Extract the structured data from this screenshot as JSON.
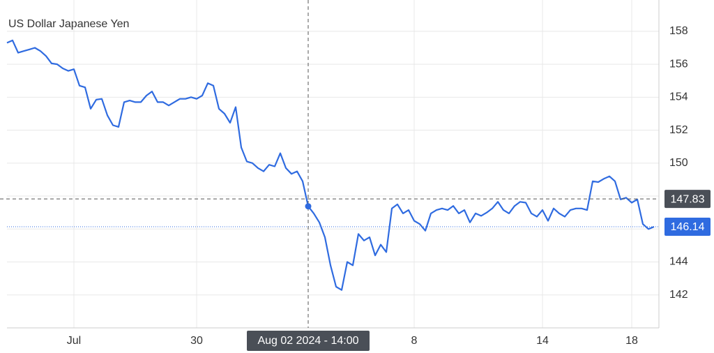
{
  "chart_data": {
    "type": "line",
    "title": "US Dollar Japanese Yen",
    "categories": [
      null,
      null,
      null,
      null,
      null,
      null,
      null,
      null,
      null,
      null,
      null,
      null,
      "Jul",
      null,
      null,
      null,
      null,
      null,
      null,
      null,
      null,
      null,
      null,
      null,
      null,
      null,
      null,
      null,
      null,
      null,
      null,
      null,
      null,
      null,
      "30",
      null,
      null,
      null,
      null,
      null,
      null,
      null,
      null,
      null,
      null,
      null,
      null,
      null,
      null,
      null,
      null,
      null,
      null,
      null,
      null,
      null,
      null,
      null,
      null,
      null,
      null,
      null,
      null,
      null,
      null,
      null,
      null,
      null,
      null,
      null,
      null,
      null,
      null,
      "8",
      null,
      null,
      null,
      null,
      null,
      null,
      null,
      null,
      null,
      null,
      null,
      null,
      null,
      null,
      null,
      null,
      null,
      null,
      null,
      null,
      null,
      null,
      "14",
      null,
      null,
      null,
      null,
      null,
      null,
      null,
      null,
      null,
      null,
      null,
      null,
      null,
      null,
      null,
      "18",
      null,
      null,
      null,
      null
    ],
    "series": [
      {
        "name": "US Dollar Japanese Yen",
        "color": "#2f6be0",
        "values": [
          157.3,
          157.45,
          156.7,
          156.8,
          156.9,
          157.0,
          156.8,
          156.5,
          156.05,
          156.0,
          155.75,
          155.6,
          155.7,
          154.7,
          154.6,
          153.3,
          153.85,
          153.9,
          152.9,
          152.3,
          152.2,
          153.7,
          153.8,
          153.7,
          153.7,
          154.1,
          154.35,
          153.7,
          153.7,
          153.5,
          153.7,
          153.9,
          153.9,
          154.0,
          153.9,
          154.1,
          154.85,
          154.7,
          153.3,
          153.0,
          152.45,
          153.4,
          150.95,
          150.1,
          150.0,
          149.7,
          149.5,
          149.9,
          149.8,
          150.6,
          149.7,
          149.35,
          149.5,
          148.9,
          147.38,
          146.95,
          146.4,
          145.5,
          143.8,
          142.5,
          142.3,
          144.0,
          143.8,
          145.7,
          145.3,
          145.5,
          144.4,
          145.05,
          144.6,
          147.25,
          147.5,
          146.95,
          147.15,
          146.5,
          146.3,
          145.9,
          146.95,
          147.15,
          147.25,
          147.15,
          147.4,
          146.95,
          147.15,
          146.4,
          146.95,
          146.8,
          147.0,
          147.25,
          147.65,
          147.15,
          146.95,
          147.4,
          147.65,
          147.6,
          146.95,
          146.75,
          147.15,
          146.5,
          147.25,
          146.95,
          146.75,
          147.15,
          147.25,
          147.25,
          147.15,
          148.9,
          148.85,
          149.05,
          149.2,
          148.9,
          147.8,
          147.9,
          147.6,
          147.8,
          146.3,
          146.0,
          146.14
        ]
      }
    ],
    "ylim": [
      140,
      159.9
    ],
    "yticks": [
      142,
      144,
      146,
      148,
      150,
      152,
      154,
      156,
      158
    ],
    "grid": true,
    "crosshair": {
      "x_label": "Aug 02 2024 - 14:00",
      "value": 147.83
    }
  }
}
